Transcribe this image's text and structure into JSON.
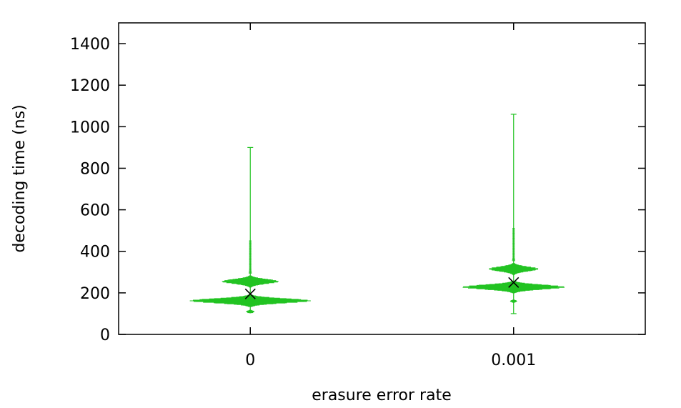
{
  "chart_data": {
    "type": "scatter",
    "subtype": "violin-jitter",
    "title": "",
    "xlabel": "erasure error rate",
    "ylabel": "decoding time (ns)",
    "ylim": [
      0,
      1500
    ],
    "yticks": [
      0,
      200,
      400,
      600,
      800,
      1000,
      1200,
      1400
    ],
    "grid": false,
    "legend": "none",
    "categories": [
      "0",
      "0.001"
    ],
    "series": [
      {
        "category": "0",
        "min": 105,
        "max": 900,
        "mean": 195,
        "clusters": [
          {
            "center": 255,
            "halfwidth": 40
          },
          {
            "center": 162,
            "halfwidth": 85
          },
          {
            "center": 110,
            "halfwidth": 6
          }
        ]
      },
      {
        "category": "0.001",
        "min": 100,
        "max": 1060,
        "mean": 250,
        "clusters": [
          {
            "center": 315,
            "halfwidth": 35
          },
          {
            "center": 228,
            "halfwidth": 72
          },
          {
            "center": 160,
            "halfwidth": 5
          }
        ]
      }
    ],
    "colors": {
      "points": "#22c322",
      "mean_marker": "#000000",
      "axis": "#000000"
    }
  }
}
